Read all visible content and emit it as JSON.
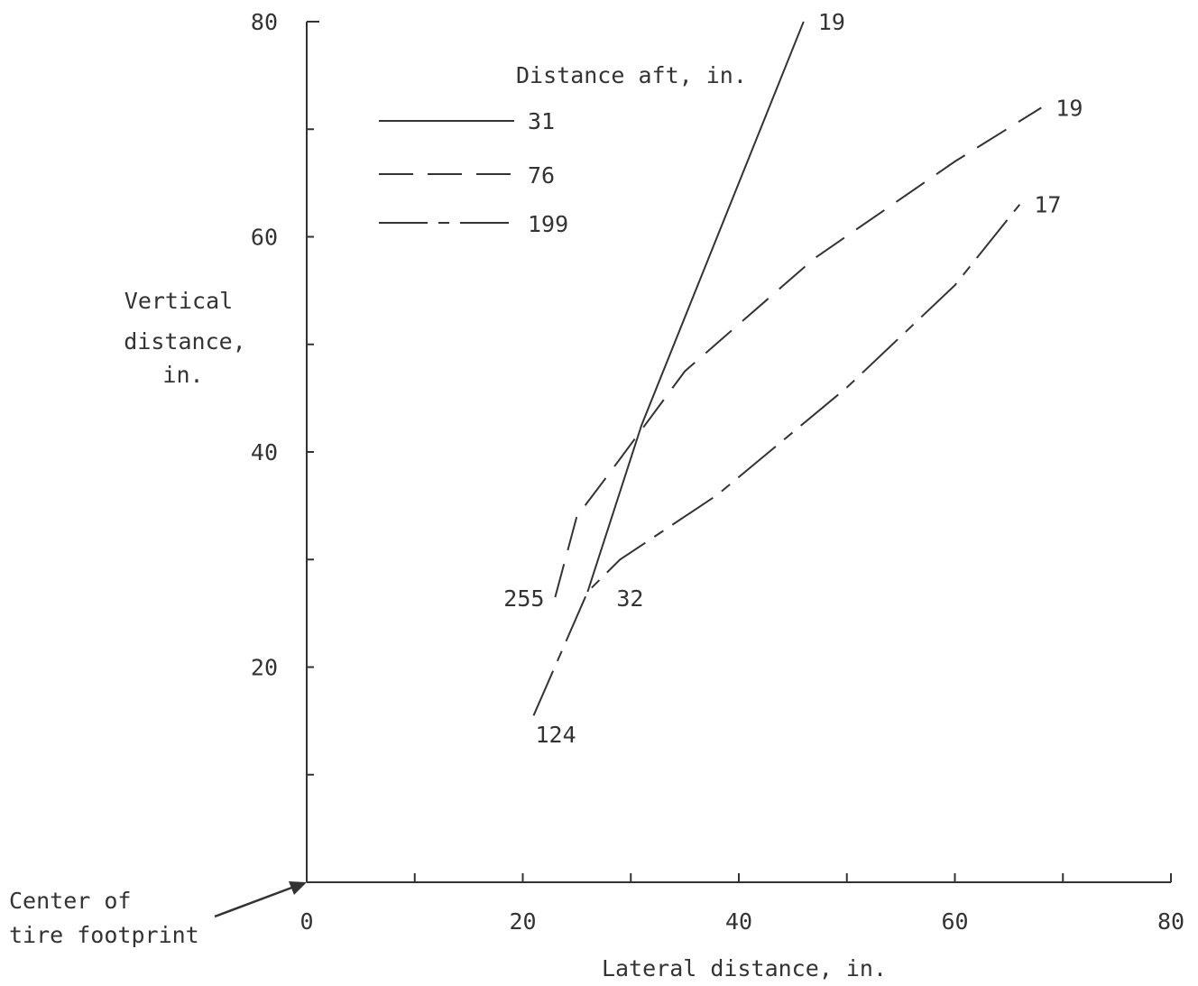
{
  "chart_data": {
    "type": "line",
    "title": "",
    "xlabel": "Lateral distance, in.",
    "ylabel": "Vertical distance, in.",
    "ylabel_lines": [
      "Vertical",
      "distance,",
      "in."
    ],
    "xlim": [
      0,
      80
    ],
    "ylim": [
      0,
      80
    ],
    "xticks": [
      0,
      20,
      40,
      60,
      80
    ],
    "yticks": [
      20,
      40,
      60,
      80
    ],
    "minor_tick_step": 10,
    "grid": false,
    "origin_annotation": [
      "Center of",
      "tire footprint"
    ],
    "legend": {
      "title": "Distance aft, in.",
      "placement": "top-left",
      "entries": [
        {
          "label": "31",
          "style": "solid"
        },
        {
          "label": "76",
          "style": "long-dash"
        },
        {
          "label": "199",
          "style": "dash-dot"
        }
      ]
    },
    "series": [
      {
        "name": "31",
        "style": "solid",
        "x": [
          26,
          31,
          46
        ],
        "y": [
          27,
          42.5,
          80
        ],
        "start_label": "32",
        "end_label": "19"
      },
      {
        "name": "76",
        "style": "long-dash",
        "x": [
          23,
          25,
          28,
          35,
          47,
          60,
          68
        ],
        "y": [
          26.5,
          34,
          38,
          47.5,
          58,
          67,
          72
        ],
        "start_label": "255",
        "end_label": "19"
      },
      {
        "name": "199",
        "style": "dash-dot",
        "x": [
          21,
          26,
          29,
          38,
          50,
          60,
          66
        ],
        "y": [
          15.5,
          27,
          30,
          36,
          46,
          55.5,
          63
        ],
        "start_label": "124",
        "end_label": "17"
      }
    ],
    "colors": {
      "ink": "#333333",
      "background": "#ffffff"
    }
  }
}
